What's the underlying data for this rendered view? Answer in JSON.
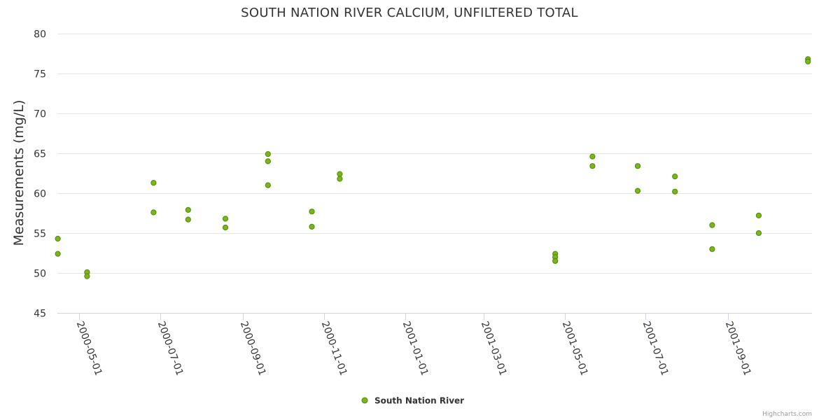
{
  "chart_data": {
    "type": "scatter",
    "title": "SOUTH NATION RIVER CALCIUM, UNFILTERED TOTAL",
    "ylabel": "Measurements (mg/L)",
    "xlabel": "",
    "ylim": [
      45,
      80
    ],
    "yticks": [
      "45",
      "50",
      "55",
      "60",
      "65",
      "70",
      "75",
      "80"
    ],
    "xlim": [
      "2000-04-15",
      "2001-11-01"
    ],
    "xticks": [
      "2000-05-01",
      "2000-07-01",
      "2000-09-01",
      "2000-11-01",
      "2001-01-01",
      "2001-03-01",
      "2001-05-01",
      "2001-07-01",
      "2001-09-01"
    ],
    "grid": true,
    "legend_position": "bottom-center",
    "series": [
      {
        "name": "South Nation River",
        "color": "#7cb518",
        "points": [
          {
            "x": "2000-04-15",
            "y": 54.3
          },
          {
            "x": "2000-04-15",
            "y": 52.4
          },
          {
            "x": "2000-05-07",
            "y": 50.1
          },
          {
            "x": "2000-05-07",
            "y": 49.6
          },
          {
            "x": "2000-06-26",
            "y": 61.3
          },
          {
            "x": "2000-06-26",
            "y": 57.6
          },
          {
            "x": "2000-07-22",
            "y": 57.9
          },
          {
            "x": "2000-07-22",
            "y": 56.7
          },
          {
            "x": "2000-08-19",
            "y": 56.8
          },
          {
            "x": "2000-08-19",
            "y": 55.7
          },
          {
            "x": "2000-09-20",
            "y": 64.9
          },
          {
            "x": "2000-09-20",
            "y": 64.0
          },
          {
            "x": "2000-09-20",
            "y": 61.0
          },
          {
            "x": "2000-10-23",
            "y": 57.7
          },
          {
            "x": "2000-10-23",
            "y": 55.8
          },
          {
            "x": "2000-11-13",
            "y": 62.4
          },
          {
            "x": "2000-11-13",
            "y": 61.8
          },
          {
            "x": "2001-04-24",
            "y": 52.4
          },
          {
            "x": "2001-04-24",
            "y": 52.0
          },
          {
            "x": "2001-04-24",
            "y": 51.5
          },
          {
            "x": "2001-05-22",
            "y": 64.6
          },
          {
            "x": "2001-05-22",
            "y": 63.4
          },
          {
            "x": "2001-06-25",
            "y": 63.4
          },
          {
            "x": "2001-06-25",
            "y": 60.3
          },
          {
            "x": "2001-07-23",
            "y": 62.1
          },
          {
            "x": "2001-07-23",
            "y": 60.2
          },
          {
            "x": "2001-08-20",
            "y": 56.0
          },
          {
            "x": "2001-08-20",
            "y": 53.0
          },
          {
            "x": "2001-09-24",
            "y": 57.2
          },
          {
            "x": "2001-09-24",
            "y": 55.0
          },
          {
            "x": "2001-10-31",
            "y": 76.8
          },
          {
            "x": "2001-10-31",
            "y": 76.5
          }
        ]
      }
    ]
  },
  "credits": "Highcharts.com"
}
